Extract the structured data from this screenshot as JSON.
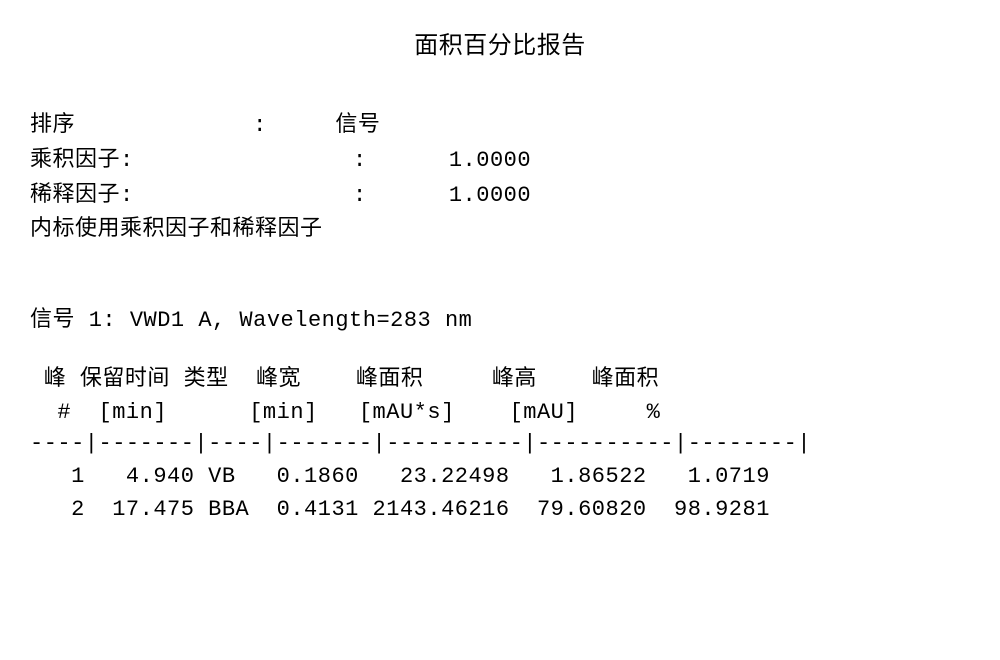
{
  "title": "面积百分比报告",
  "params": {
    "sort_label": "排序",
    "sort_value": "信号",
    "mult_label": "乘积因子:",
    "mult_value": "1.0000",
    "dil_label": "稀释因子:",
    "dil_value": "1.0000",
    "note": "内标使用乘积因子和稀释因子"
  },
  "signal": {
    "prefix": "信号 ",
    "number": "1",
    "colon": ": ",
    "text": "VWD1 A, Wavelength=283 nm"
  },
  "table": {
    "headers_line1": " 峰 保留时间 类型  峰宽    峰面积     峰高    峰面积",
    "headers_line2": "  #  [min]      [min]   [mAU*s]    [mAU]     %",
    "separator": "----|-------|----|-------|----------|----------|--------|",
    "columns": [
      "峰 #",
      "保留时间 [min]",
      "类型",
      "峰宽 [min]",
      "峰面积 [mAU*s]",
      "峰高 [mAU]",
      "峰面积 %"
    ],
    "rows": [
      {
        "num": "1",
        "rt": "4.940",
        "type": "VB",
        "width": "0.1860",
        "area": "23.22498",
        "height": "1.86522",
        "area_pct": "1.0719"
      },
      {
        "num": "2",
        "rt": "17.475",
        "type": "BBA",
        "width": "0.4131",
        "area": "2143.46216",
        "height": "79.60820",
        "area_pct": "98.9281"
      }
    ],
    "row_formatted_0": "   1   4.940 VB   0.1860   23.22498   1.86522   1.0719",
    "row_formatted_1": "   2  17.475 BBA  0.4131 2143.46216  79.60820  98.9281"
  },
  "style": {
    "background_color": "#ffffff",
    "text_color": "#000000",
    "font_family_cjk": "SimSun",
    "font_family_mono": "Courier New",
    "base_fontsize": 22,
    "title_fontsize": 24
  }
}
